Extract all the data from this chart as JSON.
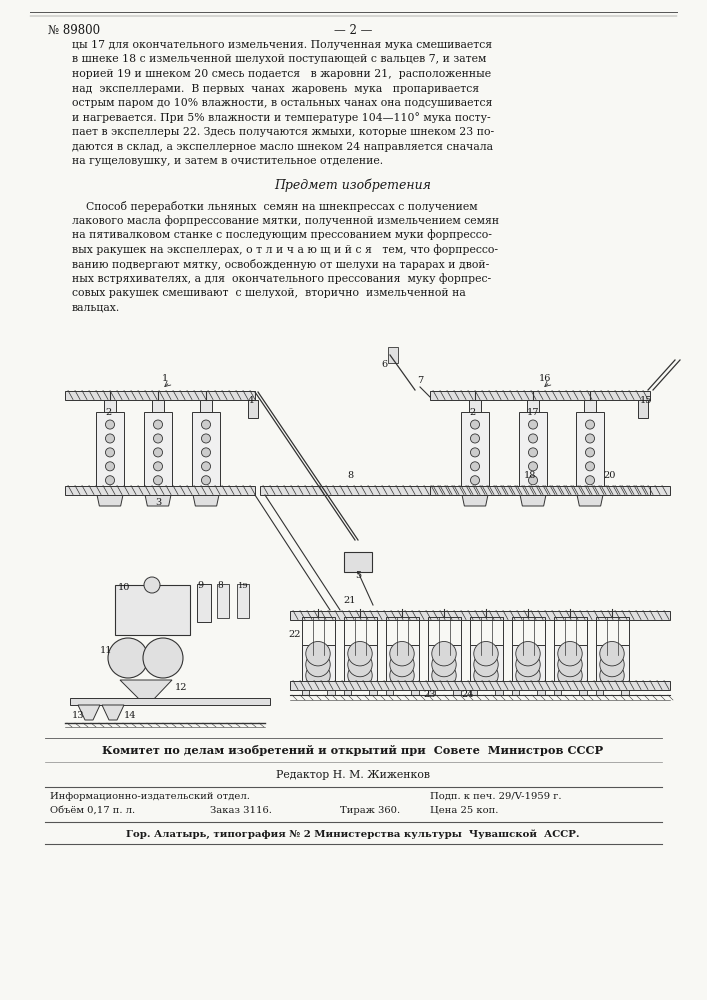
{
  "page_number": "№ 89800",
  "page_num_right": "— 2 —",
  "bg_color": "#f8f8f4",
  "text_color": "#1a1a1a",
  "body_text_1": [
    "цы 17 для окончательного измельчения. Полученная мука смешивается",
    "в шнеке 18 с измельченной шелухой поступающей с вальцев 7, и затем",
    "норией 19 и шнеком 20 смесь подается   в жаровни 21,  расположенные",
    "над  экспеллерами.  В первых  чанах  жаровень  мука   пропаривается",
    "острым паром до 10% влажности, в остальных чанах она подсушивается",
    "и нагревается. При 5% влажности и температуре 104—110° мука посту-",
    "пает в экспеллеры 22. Здесь получаются жмыхи, которые шнеком 23 по-",
    "даются в склад, а экспеллерное масло шнеком 24 направляется сначала",
    "на гущеловушку, и затем в очистительное отделение."
  ],
  "subject_title": "Предмет изобретения",
  "body_text_2": [
    "    Способ переработки льняных  семян на шнекпрессах с получением",
    "лакового масла форпрессование мятки, полученной измельчением семян",
    "на пятивалковом станке с последующим прессованием муки форпрессо-",
    "вых ракушек на экспеллерах, о т л и ч а ю щ и й с я   тем, что форпрессо-",
    "ванию подвергают мятку, освобожденную от шелухи на тарарах и двой-",
    "ных встряхивателях, а для  окончательного прессования  муку форпрес-",
    "совых ракушек смешивают  с шелухой,  вторично  измельченной на",
    "вальцах."
  ],
  "committee_text": "Комитет по делам изобретений и открытий при  Совете  Министров СССР",
  "editor_text": "Редактор Н. М. Жиженков",
  "info_row1_left": "Информационно-издательский отдел.",
  "info_row1_right": "Подп. к печ. 29/V-1959 г.",
  "info_row2_col1": "Объём 0,17 п. л.",
  "info_row2_col2": "Заказ 3116.",
  "info_row2_col3": "Тираж 360.",
  "info_row2_col4": "Цена 25 коп.",
  "footer_text": "Гор. Алатырь, типография № 2 Министерства культуры  Чувашской  АССР."
}
